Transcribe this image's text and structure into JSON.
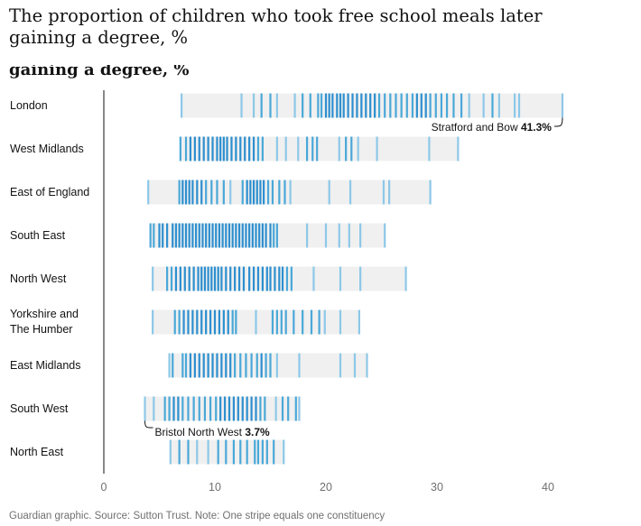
{
  "title": "The proportion of children who took free school meals later gaining a degree, %",
  "subtitle": "gaining a degree, %",
  "footer": "Guardian graphic. Source: Sutton Trust. Note: One stripe equals one constituency",
  "colors": {
    "stripe_light": "#8dc8e8",
    "stripe_mid": "#4aa8d8",
    "stripe_dark": "#2d8fcf",
    "band": "#f0f0f0",
    "axis": "#121212"
  },
  "chart_data": {
    "type": "strip",
    "title": "The proportion of children who took free school meals later gaining a degree, %",
    "xlim": [
      0,
      42
    ],
    "xticks": [
      0,
      10,
      20,
      30,
      40
    ],
    "grid": false,
    "rows": [
      {
        "label": "London",
        "values": [
          7.0,
          12.4,
          13.5,
          14.2,
          15.0,
          15.6,
          17.2,
          17.9,
          18.6,
          19.3,
          19.6,
          20.0,
          20.3,
          20.6,
          21.0,
          21.3,
          21.6,
          22.0,
          22.4,
          22.8,
          23.2,
          23.6,
          24.0,
          24.4,
          24.8,
          25.3,
          25.8,
          26.3,
          26.8,
          27.3,
          27.8,
          28.2,
          28.6,
          29.0,
          29.4,
          29.9,
          30.4,
          30.9,
          31.5,
          32.2,
          32.9,
          34.2,
          35.0,
          35.6,
          37.0,
          37.4,
          41.3
        ]
      },
      {
        "label": "West Midlands",
        "values": [
          6.9,
          7.4,
          7.8,
          8.2,
          8.6,
          9.0,
          9.4,
          9.8,
          10.2,
          10.5,
          10.8,
          11.1,
          11.5,
          11.9,
          12.3,
          12.7,
          13.1,
          13.5,
          13.9,
          14.3,
          15.6,
          16.4,
          17.5,
          18.3,
          18.8,
          19.2,
          21.2,
          21.8,
          22.3,
          22.9,
          24.6,
          29.3,
          31.9
        ]
      },
      {
        "label": "East of England",
        "values": [
          4.0,
          6.8,
          7.1,
          7.4,
          7.7,
          8.0,
          8.4,
          8.8,
          9.2,
          9.7,
          10.2,
          10.8,
          11.4,
          12.5,
          12.9,
          13.2,
          13.5,
          13.8,
          14.1,
          14.4,
          14.8,
          15.2,
          15.8,
          16.3,
          16.8,
          20.3,
          22.2,
          25.2,
          25.7,
          29.4
        ]
      },
      {
        "label": "South East",
        "values": [
          4.2,
          4.5,
          5.0,
          5.3,
          5.7,
          6.2,
          6.5,
          6.8,
          7.1,
          7.4,
          7.7,
          8.0,
          8.3,
          8.6,
          8.9,
          9.2,
          9.5,
          9.8,
          10.1,
          10.4,
          10.7,
          11.0,
          11.3,
          11.6,
          11.9,
          12.2,
          12.5,
          12.8,
          13.1,
          13.4,
          13.7,
          14.0,
          14.3,
          14.6,
          15.0,
          15.3,
          15.6,
          18.3,
          20.0,
          21.2,
          22.1,
          23.1,
          25.3
        ]
      },
      {
        "label": "North West",
        "values": [
          4.4,
          5.7,
          6.1,
          6.5,
          6.9,
          7.3,
          7.7,
          8.1,
          8.5,
          8.8,
          9.1,
          9.4,
          9.7,
          10.0,
          10.3,
          10.6,
          11.0,
          11.4,
          11.8,
          12.2,
          12.6,
          13.1,
          13.5,
          13.9,
          14.3,
          14.7,
          15.0,
          15.4,
          15.8,
          16.1,
          16.5,
          16.9,
          18.9,
          21.3,
          23.1,
          27.2
        ]
      },
      {
        "label": "Yorkshire and\nThe Humber",
        "values": [
          4.4,
          6.4,
          6.8,
          7.2,
          7.6,
          8.0,
          8.4,
          8.8,
          9.2,
          9.6,
          10.0,
          10.4,
          10.8,
          11.2,
          11.6,
          11.9,
          13.7,
          15.2,
          15.6,
          16.0,
          16.4,
          17.1,
          17.9,
          18.7,
          19.4,
          19.9,
          21.3,
          23.0
        ]
      },
      {
        "label": "East Midlands",
        "values": [
          5.9,
          6.2,
          7.1,
          7.4,
          7.8,
          8.2,
          8.6,
          9.0,
          9.4,
          9.8,
          10.2,
          10.6,
          11.0,
          11.4,
          11.8,
          12.3,
          12.8,
          13.3,
          13.8,
          14.2,
          14.6,
          15.0,
          15.6,
          17.6,
          21.3,
          22.6,
          23.7
        ]
      },
      {
        "label": "South West",
        "values": [
          3.7,
          4.5,
          5.5,
          5.9,
          6.3,
          6.7,
          7.1,
          7.6,
          8.1,
          8.6,
          9.1,
          9.6,
          10.1,
          10.5,
          10.9,
          11.3,
          11.7,
          12.1,
          12.5,
          12.9,
          13.3,
          13.7,
          14.1,
          14.5,
          15.5,
          16.1,
          16.6,
          17.3,
          17.6
        ]
      },
      {
        "label": "North East",
        "values": [
          6.0,
          6.8,
          7.6,
          8.4,
          9.4,
          10.3,
          11.0,
          11.7,
          12.3,
          12.9,
          13.6,
          13.9,
          14.3,
          14.7,
          15.3,
          16.2
        ]
      }
    ],
    "annotations": [
      {
        "row": "London",
        "value": 41.3,
        "text": "Stratford and Bow",
        "value_text": "41.3%"
      },
      {
        "row": "South West",
        "value": 3.7,
        "text": "Bristol North West",
        "value_text": "3.7%"
      }
    ]
  }
}
